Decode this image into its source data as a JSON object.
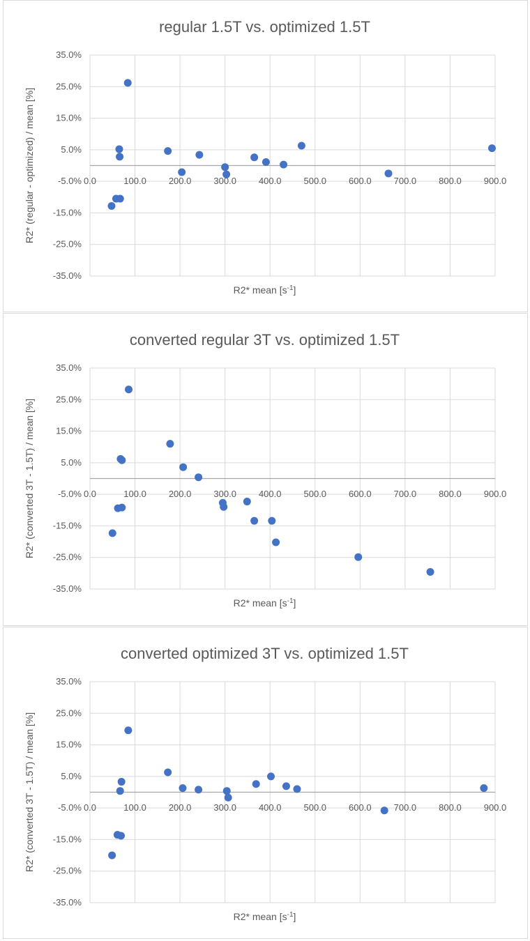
{
  "colors": {
    "marker": "#4472c4",
    "grid": "#d9d9d9",
    "axis": "#a6a6a6",
    "text": "#595959"
  },
  "chart_data": [
    {
      "type": "scatter",
      "title": "regular 1.5T vs. optimized 1.5T",
      "xlabel": "R2* mean [s",
      "xlabel_sup": "-1",
      "xlabel_end": "]",
      "ylabel": "R2* (regular - optimized) / mean [%]",
      "xlim": [
        0,
        900
      ],
      "ylim": [
        -35,
        35
      ],
      "x_ticks": [
        "0.0",
        "100.0",
        "200.0",
        "300.0",
        "400.0",
        "500.0",
        "600.0",
        "700.0",
        "800.0",
        "900.0"
      ],
      "y_ticks": [
        "35.0%",
        "25.0%",
        "15.0%",
        "5.0%",
        "-5.0%",
        "-15.0%",
        "-25.0%",
        "-35.0%"
      ],
      "points": [
        {
          "x": 48,
          "y": -12.8
        },
        {
          "x": 58,
          "y": -10.5
        },
        {
          "x": 67,
          "y": -10.5
        },
        {
          "x": 65,
          "y": 5.2
        },
        {
          "x": 66,
          "y": 2.8
        },
        {
          "x": 84,
          "y": 26.2
        },
        {
          "x": 173,
          "y": 4.6
        },
        {
          "x": 204,
          "y": -2.1
        },
        {
          "x": 243,
          "y": 3.4
        },
        {
          "x": 300,
          "y": -0.5
        },
        {
          "x": 303,
          "y": -2.8
        },
        {
          "x": 365,
          "y": 2.6
        },
        {
          "x": 391,
          "y": 1.1
        },
        {
          "x": 430,
          "y": 0.3
        },
        {
          "x": 470,
          "y": 6.3
        },
        {
          "x": 663,
          "y": -2.5
        },
        {
          "x": 893,
          "y": 5.5
        }
      ]
    },
    {
      "type": "scatter",
      "title": "converted regular 3T vs. optimized 1.5T",
      "xlabel": "R2* mean [s",
      "xlabel_sup": "-1",
      "xlabel_end": "]",
      "ylabel": "R2* (converted 3T - 1.5T) / mean [%]",
      "xlim": [
        0,
        900
      ],
      "ylim": [
        -35,
        35
      ],
      "x_ticks": [
        "0.0",
        "100.0",
        "200.0",
        "300.0",
        "400.0",
        "500.0",
        "600.0",
        "700.0",
        "800.0",
        "900.0"
      ],
      "y_ticks": [
        "35.0%",
        "25.0%",
        "15.0%",
        "5.0%",
        "-5.0%",
        "-15.0%",
        "-25.0%",
        "-35.0%"
      ],
      "points": [
        {
          "x": 50,
          "y": -17.3
        },
        {
          "x": 62,
          "y": -9.4
        },
        {
          "x": 71,
          "y": -9.2
        },
        {
          "x": 68,
          "y": 6.2
        },
        {
          "x": 71,
          "y": 5.8
        },
        {
          "x": 86,
          "y": 28.2
        },
        {
          "x": 178,
          "y": 11.0
        },
        {
          "x": 207,
          "y": 3.6
        },
        {
          "x": 241,
          "y": 0.4
        },
        {
          "x": 295,
          "y": -7.7
        },
        {
          "x": 297,
          "y": -9.0
        },
        {
          "x": 349,
          "y": -7.3
        },
        {
          "x": 365,
          "y": -13.4
        },
        {
          "x": 404,
          "y": -13.4
        },
        {
          "x": 413,
          "y": -20.2
        },
        {
          "x": 596,
          "y": -24.9
        },
        {
          "x": 756,
          "y": -29.6
        }
      ]
    },
    {
      "type": "scatter",
      "title": "converted optimized 3T vs. optimized 1.5T",
      "xlabel": "R2* mean [s",
      "xlabel_sup": "-1",
      "xlabel_end": "]",
      "ylabel": "R2* (converted 3T - 1.5T) / mean [%]",
      "xlim": [
        0,
        900
      ],
      "ylim": [
        -35,
        35
      ],
      "x_ticks": [
        "0.0",
        "100.0",
        "200.0",
        "300.0",
        "400.0",
        "500.0",
        "600.0",
        "700.0",
        "800.0",
        "900.0"
      ],
      "y_ticks": [
        "35.0%",
        "25.0%",
        "15.0%",
        "5.0%",
        "-5.0%",
        "-15.0%",
        "-25.0%",
        "-35.0%"
      ],
      "points": [
        {
          "x": 49,
          "y": -20.0
        },
        {
          "x": 61,
          "y": -13.5
        },
        {
          "x": 69,
          "y": -13.8
        },
        {
          "x": 67,
          "y": 0.4
        },
        {
          "x": 70,
          "y": 3.3
        },
        {
          "x": 85,
          "y": 19.6
        },
        {
          "x": 173,
          "y": 6.3
        },
        {
          "x": 206,
          "y": 1.3
        },
        {
          "x": 241,
          "y": 0.8
        },
        {
          "x": 304,
          "y": 0.4
        },
        {
          "x": 307,
          "y": -1.7
        },
        {
          "x": 369,
          "y": 2.6
        },
        {
          "x": 402,
          "y": 5.0
        },
        {
          "x": 436,
          "y": 1.9
        },
        {
          "x": 460,
          "y": 1.0
        },
        {
          "x": 654,
          "y": -5.8
        },
        {
          "x": 875,
          "y": 1.3
        }
      ]
    }
  ]
}
